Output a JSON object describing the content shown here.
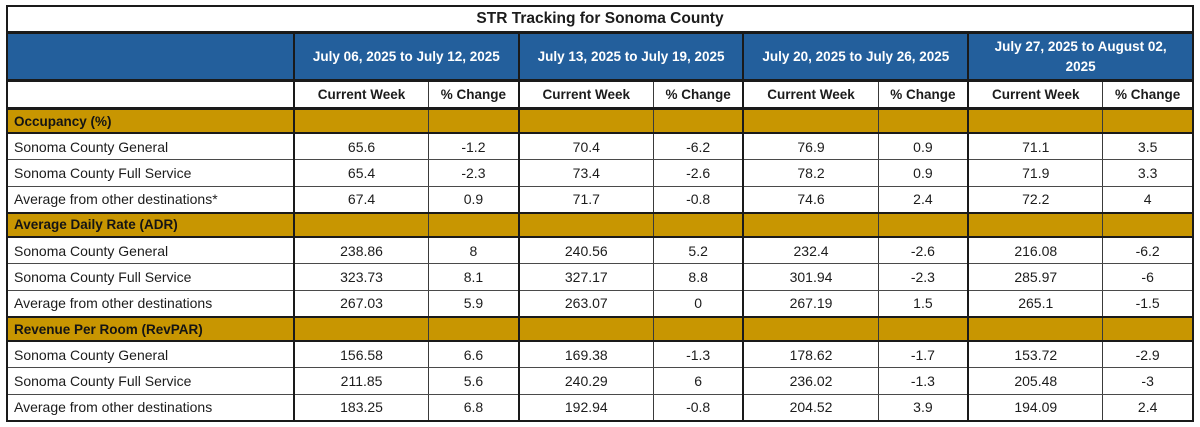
{
  "table": {
    "title": "STR Tracking for Sonoma County",
    "week_ranges": [
      "July 06, 2025 to July 12, 2025",
      "July 13, 2025 to July 19, 2025",
      "July 20, 2025 to July 26, 2025",
      "July 27, 2025 to August 02, 2025"
    ],
    "col_headers": {
      "current_week": "Current Week",
      "pct_change": "% Change"
    },
    "sections": [
      {
        "label": "Occupancy (%)",
        "rows": [
          {
            "label": "Sonoma County General",
            "values": [
              65.6,
              -1.2,
              70.4,
              -6.2,
              76.9,
              0.9,
              71.1,
              3.5
            ]
          },
          {
            "label": "Sonoma County Full Service",
            "values": [
              65.4,
              -2.3,
              73.4,
              -2.6,
              78.2,
              0.9,
              71.9,
              3.3
            ]
          },
          {
            "label": "Average from other destinations*",
            "values": [
              67.4,
              0.9,
              71.7,
              -0.8,
              74.6,
              2.4,
              72.2,
              4
            ]
          }
        ]
      },
      {
        "label": "Average Daily Rate (ADR)",
        "rows": [
          {
            "label": "Sonoma County General",
            "values": [
              238.86,
              8,
              240.56,
              5.2,
              232.4,
              -2.6,
              216.08,
              -6.2
            ]
          },
          {
            "label": "Sonoma County Full Service",
            "values": [
              323.73,
              8.1,
              327.17,
              8.8,
              301.94,
              -2.3,
              285.97,
              -6
            ]
          },
          {
            "label": "Average from other destinations",
            "values": [
              267.03,
              5.9,
              263.07,
              0,
              267.19,
              1.5,
              265.1,
              -1.5
            ]
          }
        ]
      },
      {
        "label": "Revenue Per Room (RevPAR)",
        "rows": [
          {
            "label": "Sonoma County General",
            "values": [
              156.58,
              6.6,
              169.38,
              -1.3,
              178.62,
              -1.7,
              153.72,
              -2.9
            ]
          },
          {
            "label": "Sonoma County Full Service",
            "values": [
              211.85,
              5.6,
              240.29,
              6,
              236.02,
              -1.3,
              205.48,
              -3
            ]
          },
          {
            "label": "Average from other destinations",
            "values": [
              183.25,
              6.8,
              192.94,
              -0.8,
              204.52,
              3.9,
              194.09,
              2.4
            ]
          }
        ]
      }
    ],
    "colors": {
      "header_blue": "#235F9C",
      "section_gold": "#C89601",
      "border_black": "#1a1a1a",
      "header_text": "#FFFFFF"
    }
  }
}
